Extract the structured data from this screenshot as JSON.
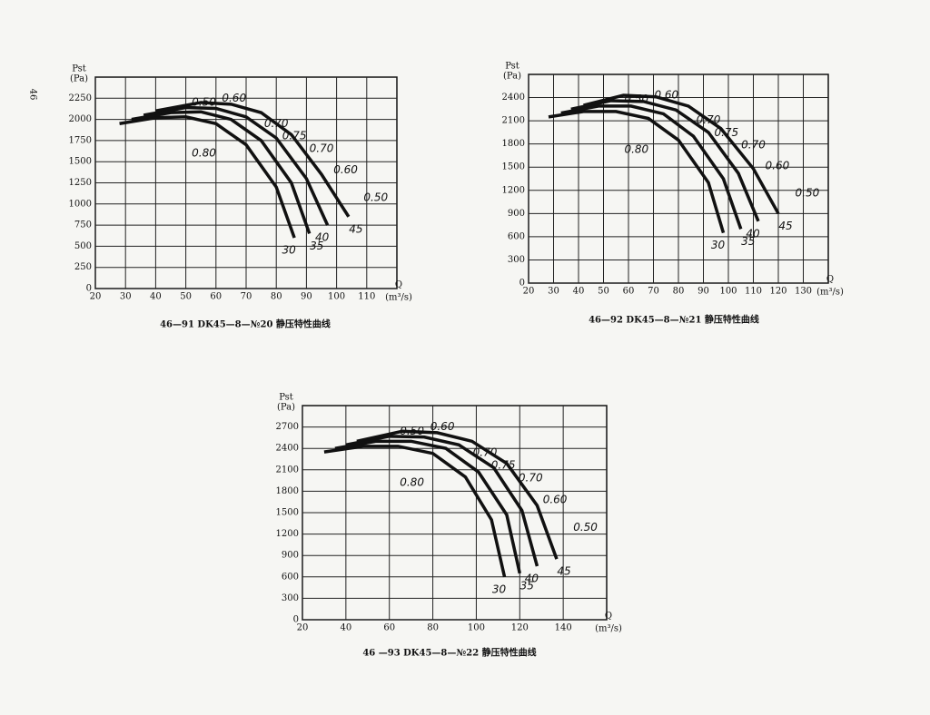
{
  "page_number": "46",
  "chart_data": [
    {
      "type": "line",
      "caption": "46—91  DK45—8—№20  静压特性曲线",
      "y_label": "Pst",
      "y_unit": "(Pa)",
      "x_label": "Q",
      "x_unit": "(m³/s)",
      "xlim": [
        20,
        120
      ],
      "xticks": [
        20,
        30,
        40,
        50,
        60,
        70,
        80,
        90,
        100,
        110
      ],
      "ylim": [
        0,
        2500
      ],
      "yticks": [
        0,
        250,
        500,
        750,
        1000,
        1250,
        1500,
        1750,
        2000,
        2250
      ],
      "grid": true,
      "series": [
        {
          "name": "30",
          "color": "#111",
          "x": [
            28,
            40,
            50,
            60,
            70,
            80,
            86
          ],
          "values": [
            1950,
            2020,
            2030,
            1950,
            1700,
            1200,
            600
          ]
        },
        {
          "name": "35",
          "color": "#111",
          "x": [
            32,
            45,
            55,
            65,
            75,
            85,
            91
          ],
          "values": [
            2000,
            2080,
            2090,
            2000,
            1750,
            1250,
            650
          ]
        },
        {
          "name": "40",
          "color": "#111",
          "x": [
            36,
            50,
            60,
            70,
            80,
            90,
            97
          ],
          "values": [
            2050,
            2140,
            2130,
            2030,
            1780,
            1300,
            750
          ]
        },
        {
          "name": "45",
          "color": "#111",
          "x": [
            40,
            55,
            65,
            75,
            85,
            95,
            104
          ],
          "values": [
            2100,
            2200,
            2180,
            2080,
            1820,
            1350,
            850
          ]
        }
      ],
      "annotations": [
        "0.50",
        "0.60",
        "0.70",
        "0.75",
        "0.70",
        "0.60",
        "0.50",
        "0.80"
      ]
    },
    {
      "type": "line",
      "caption": "46—92  DK45—8—№21  静压特性曲线",
      "y_label": "Pst",
      "y_unit": "(Pa)",
      "x_label": "Q",
      "x_unit": "(m³/s)",
      "xlim": [
        20,
        140
      ],
      "xticks": [
        20,
        30,
        40,
        50,
        60,
        70,
        80,
        90,
        100,
        110,
        120,
        130
      ],
      "ylim": [
        0,
        2700
      ],
      "yticks": [
        0,
        300,
        600,
        900,
        1200,
        1500,
        1800,
        2100,
        2400
      ],
      "grid": true,
      "series": [
        {
          "name": "30",
          "color": "#111",
          "x": [
            28,
            42,
            55,
            68,
            80,
            92,
            98
          ],
          "values": [
            2150,
            2220,
            2220,
            2130,
            1850,
            1300,
            650
          ]
        },
        {
          "name": "35",
          "color": "#111",
          "x": [
            33,
            48,
            61,
            74,
            86,
            98,
            105
          ],
          "values": [
            2200,
            2290,
            2290,
            2190,
            1900,
            1350,
            700
          ]
        },
        {
          "name": "40",
          "color": "#111",
          "x": [
            37,
            53,
            66,
            79,
            92,
            104,
            112
          ],
          "values": [
            2250,
            2360,
            2350,
            2240,
            1950,
            1420,
            800
          ]
        },
        {
          "name": "45",
          "color": "#111",
          "x": [
            42,
            58,
            71,
            84,
            97,
            110,
            120
          ],
          "values": [
            2300,
            2430,
            2410,
            2290,
            2000,
            1480,
            900
          ]
        }
      ],
      "annotations": [
        "0.50",
        "0.60",
        "0.70",
        "0.75",
        "0.70",
        "0.60",
        "0.50",
        "0.80"
      ]
    },
    {
      "type": "line",
      "caption": "46 —93  DK45—8—№22  静压特性曲线",
      "y_label": "Pst",
      "y_unit": "(Pa)",
      "x_label": "Q",
      "x_unit": "(m³/s)",
      "xlim": [
        20,
        160
      ],
      "xticks": [
        20,
        40,
        60,
        80,
        100,
        120,
        140
      ],
      "ylim": [
        0,
        3000
      ],
      "yticks": [
        0,
        300,
        600,
        900,
        1200,
        1500,
        1800,
        2100,
        2400,
        2700
      ],
      "grid": true,
      "series": [
        {
          "name": "30",
          "color": "#111",
          "x": [
            30,
            48,
            64,
            80,
            95,
            107,
            113
          ],
          "values": [
            2350,
            2430,
            2430,
            2330,
            2000,
            1400,
            600
          ]
        },
        {
          "name": "35",
          "color": "#111",
          "x": [
            35,
            54,
            70,
            86,
            101,
            114,
            120
          ],
          "values": [
            2400,
            2500,
            2500,
            2400,
            2070,
            1470,
            650
          ]
        },
        {
          "name": "40",
          "color": "#111",
          "x": [
            40,
            60,
            76,
            92,
            108,
            121,
            128
          ],
          "values": [
            2450,
            2570,
            2560,
            2450,
            2130,
            1530,
            750
          ]
        },
        {
          "name": "45",
          "color": "#111",
          "x": [
            45,
            66,
            82,
            98,
            114,
            128,
            137
          ],
          "values": [
            2500,
            2640,
            2620,
            2500,
            2190,
            1600,
            850
          ]
        }
      ],
      "annotations": [
        "0.50",
        "0.60",
        "0.70",
        "0.75",
        "0.70",
        "0.60",
        "0.50",
        "0.80"
      ]
    }
  ]
}
